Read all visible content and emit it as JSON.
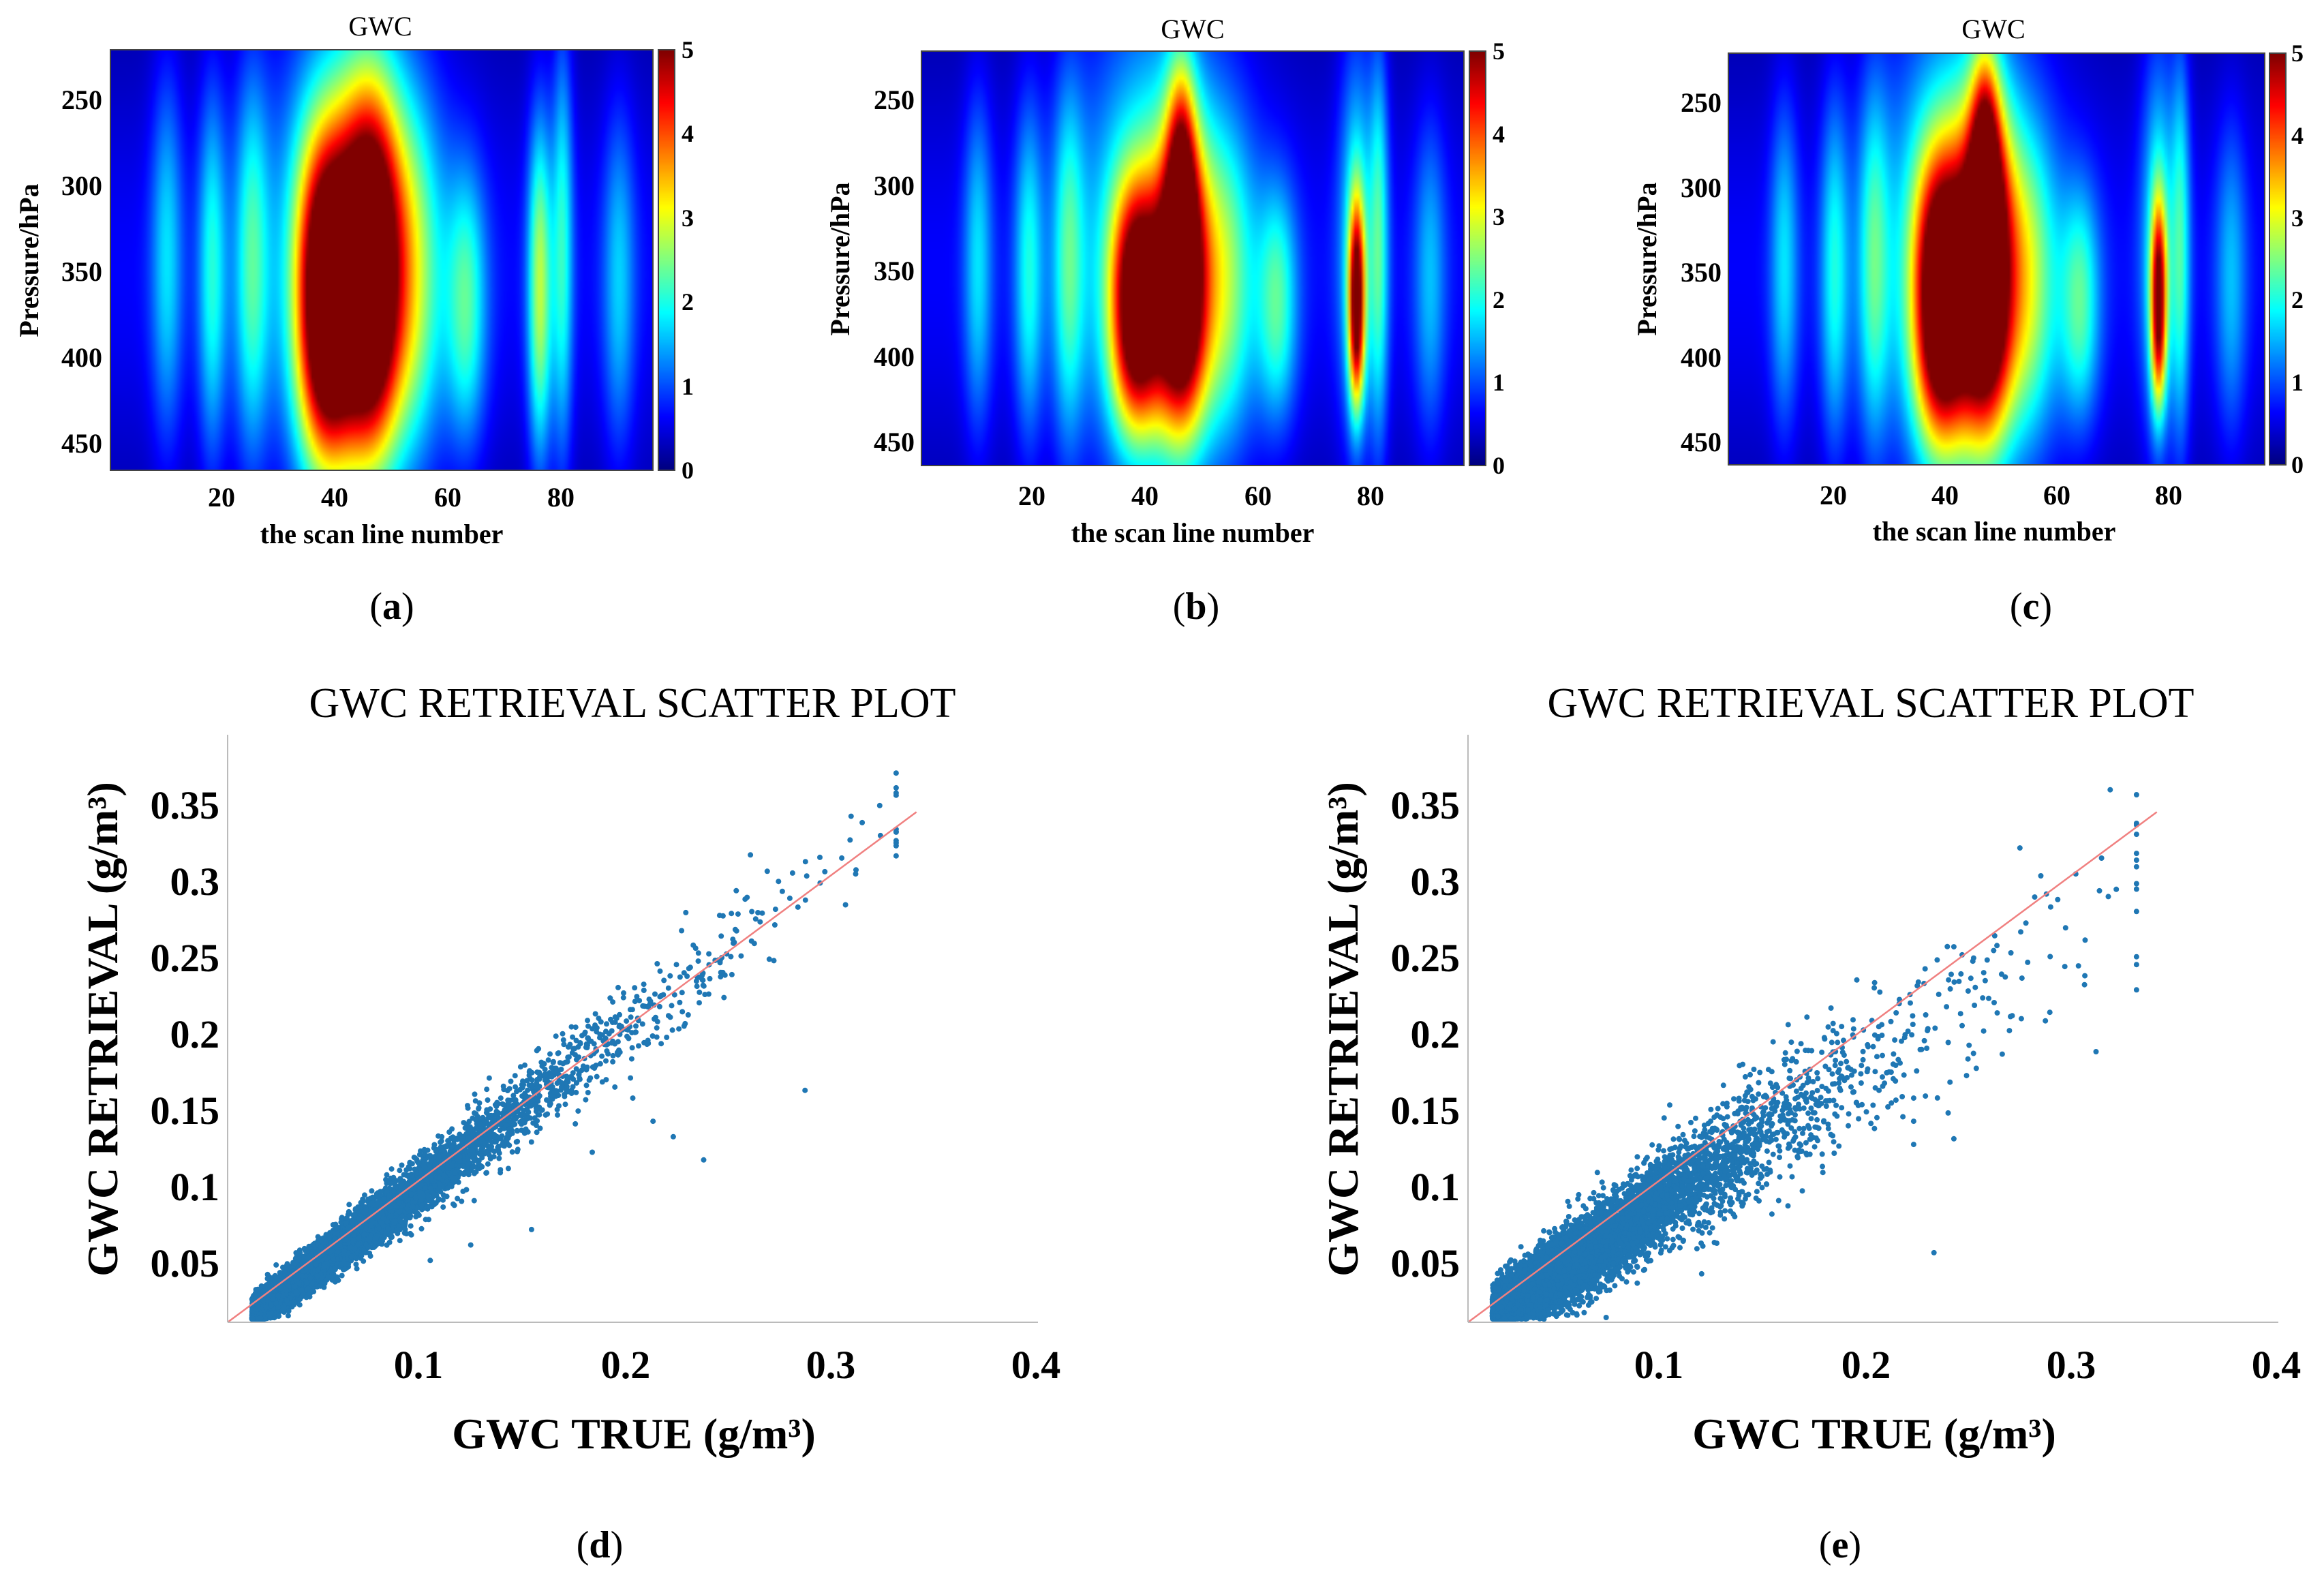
{
  "chart_data": [
    {
      "type": "heatmap",
      "panel": "(a)",
      "title": "GWC",
      "xlabel": "the scan line number",
      "ylabel": "Pressure/hPa",
      "xticks": [
        "20",
        "40",
        "60",
        "80"
      ],
      "yticks": [
        "250",
        "300",
        "350",
        "400",
        "450"
      ],
      "colorbar_ticks": [
        "0",
        "1",
        "2",
        "3",
        "4",
        "5"
      ],
      "xlim": [
        0,
        96
      ],
      "ylim": [
        220,
        465
      ],
      "clim": [
        0,
        5
      ],
      "colormap": "jet",
      "features": [
        {
          "x": 10,
          "p_center": 340,
          "p_half": 110,
          "width": 2.0,
          "peak": 1.3
        },
        {
          "x": 18,
          "p_center": 350,
          "p_half": 110,
          "width": 1.8,
          "peak": 1.6
        },
        {
          "x": 25,
          "p_center": 345,
          "p_half": 115,
          "width": 2.2,
          "peak": 1.7
        },
        {
          "x": 38,
          "p_center": 368,
          "p_half": 95,
          "width": 3.6,
          "peak": 5.6
        },
        {
          "x": 46,
          "p_center": 352,
          "p_half": 105,
          "width": 3.8,
          "peak": 5.8
        },
        {
          "x": 43,
          "p_center": 330,
          "p_half": 150,
          "width": 9.0,
          "peak": 2.0
        },
        {
          "x": 54,
          "p_center": 355,
          "p_half": 100,
          "width": 3.5,
          "peak": 1.5
        },
        {
          "x": 63,
          "p_center": 370,
          "p_half": 80,
          "width": 2.5,
          "peak": 1.8
        },
        {
          "x": 76,
          "p_center": 360,
          "p_half": 100,
          "width": 1.5,
          "peak": 2.5
        },
        {
          "x": 80,
          "p_center": 335,
          "p_half": 125,
          "width": 1.3,
          "peak": 1.7
        },
        {
          "x": 90,
          "p_center": 355,
          "p_half": 100,
          "width": 2.0,
          "peak": 1.2
        }
      ]
    },
    {
      "type": "heatmap",
      "panel": "(b)",
      "title": "GWC",
      "xlabel": "the scan line number",
      "ylabel": "Pressure/hPa",
      "xticks": [
        "20",
        "40",
        "60",
        "80"
      ],
      "yticks": [
        "250",
        "300",
        "350",
        "400",
        "450"
      ],
      "colorbar_ticks": [
        "0",
        "1",
        "2",
        "3",
        "4",
        "5"
      ],
      "xlim": [
        0,
        96
      ],
      "ylim": [
        220,
        465
      ],
      "clim": [
        0,
        5
      ],
      "colormap": "jet",
      "features": [
        {
          "x": 10,
          "p_center": 345,
          "p_half": 100,
          "width": 1.8,
          "peak": 1.3
        },
        {
          "x": 19,
          "p_center": 350,
          "p_half": 100,
          "width": 1.8,
          "peak": 1.5
        },
        {
          "x": 26,
          "p_center": 345,
          "p_half": 110,
          "width": 2.0,
          "peak": 1.6
        },
        {
          "x": 38,
          "p_center": 372,
          "p_half": 72,
          "width": 3.2,
          "peak": 5.0
        },
        {
          "x": 46,
          "p_center": 362,
          "p_half": 85,
          "width": 3.2,
          "peak": 5.4
        },
        {
          "x": 42,
          "p_center": 330,
          "p_half": 150,
          "width": 9.5,
          "peak": 1.9
        },
        {
          "x": 46,
          "p_center": 290,
          "p_half": 70,
          "width": 1.8,
          "peak": 2.6
        },
        {
          "x": 54,
          "p_center": 360,
          "p_half": 90,
          "width": 3.5,
          "peak": 1.6
        },
        {
          "x": 63,
          "p_center": 370,
          "p_half": 70,
          "width": 2.5,
          "peak": 1.8
        },
        {
          "x": 77,
          "p_center": 370,
          "p_half": 60,
          "width": 1.0,
          "peak": 4.6
        },
        {
          "x": 77,
          "p_center": 330,
          "p_half": 120,
          "width": 2.2,
          "peak": 1.6
        },
        {
          "x": 81,
          "p_center": 335,
          "p_half": 120,
          "width": 1.2,
          "peak": 1.7
        },
        {
          "x": 90,
          "p_center": 355,
          "p_half": 95,
          "width": 2.0,
          "peak": 1.1
        }
      ]
    },
    {
      "type": "heatmap",
      "panel": "(c)",
      "title": "GWC",
      "xlabel": "the scan line number",
      "ylabel": "Pressure/hPa",
      "xticks": [
        "20",
        "40",
        "60",
        "80"
      ],
      "yticks": [
        "250",
        "300",
        "350",
        "400",
        "450"
      ],
      "colorbar_ticks": [
        "0",
        "1",
        "2",
        "3",
        "4",
        "5"
      ],
      "xlim": [
        0,
        96
      ],
      "ylim": [
        220,
        465
      ],
      "clim": [
        0,
        5
      ],
      "colormap": "jet",
      "features": [
        {
          "x": 10,
          "p_center": 345,
          "p_half": 100,
          "width": 1.8,
          "peak": 1.3
        },
        {
          "x": 19,
          "p_center": 350,
          "p_half": 105,
          "width": 1.8,
          "peak": 1.5
        },
        {
          "x": 26,
          "p_center": 345,
          "p_half": 110,
          "width": 2.0,
          "peak": 1.6
        },
        {
          "x": 38,
          "p_center": 368,
          "p_half": 85,
          "width": 3.4,
          "peak": 5.6
        },
        {
          "x": 46,
          "p_center": 355,
          "p_half": 95,
          "width": 3.4,
          "peak": 5.7
        },
        {
          "x": 42,
          "p_center": 330,
          "p_half": 150,
          "width": 9.5,
          "peak": 2.0
        },
        {
          "x": 46,
          "p_center": 285,
          "p_half": 70,
          "width": 1.8,
          "peak": 2.8
        },
        {
          "x": 54,
          "p_center": 360,
          "p_half": 90,
          "width": 3.5,
          "peak": 1.7
        },
        {
          "x": 63,
          "p_center": 370,
          "p_half": 70,
          "width": 2.5,
          "peak": 1.8
        },
        {
          "x": 77,
          "p_center": 370,
          "p_half": 60,
          "width": 1.0,
          "peak": 4.2
        },
        {
          "x": 77,
          "p_center": 330,
          "p_half": 120,
          "width": 2.2,
          "peak": 1.6
        },
        {
          "x": 81,
          "p_center": 335,
          "p_half": 120,
          "width": 1.2,
          "peak": 1.6
        },
        {
          "x": 90,
          "p_center": 355,
          "p_half": 95,
          "width": 2.0,
          "peak": 1.1
        }
      ]
    },
    {
      "type": "scatter",
      "panel": "(d)",
      "title": "GWC RETRIEVAL SCATTER PLOT",
      "xlabel": "GWC TRUE (g/m³)",
      "ylabel": "GWC RETRIEVAL (g/m³)",
      "xlim": [
        0.0,
        0.4
      ],
      "ylim": [
        0.01,
        0.39
      ],
      "xticks": [
        "0.1",
        "0.2",
        "0.3",
        "0.4"
      ],
      "yticks": [
        "0.05",
        "0.1",
        "0.15",
        "0.2",
        "0.25",
        "0.3",
        "0.35"
      ],
      "reference_line": {
        "x": [
          0.0,
          0.34
        ],
        "y": [
          0.0,
          0.34
        ],
        "color": "#f08080"
      },
      "marker_color": "#1f77b4",
      "n_points": 9000,
      "slope": 1.0,
      "noise_sd_base": 0.004,
      "noise_sd_rel": 0.05,
      "outliers": [
        {
          "x": 0.285,
          "y": 0.16
        },
        {
          "x": 0.21,
          "y": 0.14
        },
        {
          "x": 0.22,
          "y": 0.13
        },
        {
          "x": 0.235,
          "y": 0.115
        },
        {
          "x": 0.18,
          "y": 0.12
        },
        {
          "x": 0.15,
          "y": 0.07
        },
        {
          "x": 0.12,
          "y": 0.06
        },
        {
          "x": 0.26,
          "y": 0.255
        },
        {
          "x": 0.33,
          "y": 0.32
        },
        {
          "x": 0.31,
          "y": 0.3
        },
        {
          "x": 0.305,
          "y": 0.28
        },
        {
          "x": 0.245,
          "y": 0.22
        },
        {
          "x": 0.2,
          "y": 0.155
        },
        {
          "x": 0.1,
          "y": 0.05
        }
      ],
      "x_max": 0.33
    },
    {
      "type": "scatter",
      "panel": "(e)",
      "title": "GWC RETRIEVAL SCATTER PLOT",
      "xlabel": "GWC TRUE (g/m³)",
      "ylabel": "GWC RETRIEVAL (g/m³)",
      "xlim": [
        0.0,
        0.4
      ],
      "ylim": [
        0.01,
        0.39
      ],
      "xticks": [
        "0.1",
        "0.2",
        "0.3",
        "0.4"
      ],
      "yticks": [
        "0.05",
        "0.1",
        "0.15",
        "0.2",
        "0.25",
        "0.3",
        "0.35"
      ],
      "reference_line": {
        "x": [
          0.0,
          0.34
        ],
        "y": [
          0.0,
          0.34
        ],
        "color": "#f08080"
      },
      "marker_color": "#1f77b4",
      "n_points": 9000,
      "slope": 0.88,
      "noise_sd_base": 0.007,
      "noise_sd_rel": 0.09,
      "outliers": [
        {
          "x": 0.33,
          "y": 0.225
        },
        {
          "x": 0.31,
          "y": 0.185
        },
        {
          "x": 0.285,
          "y": 0.205
        },
        {
          "x": 0.23,
          "y": 0.055
        },
        {
          "x": 0.22,
          "y": 0.155
        },
        {
          "x": 0.22,
          "y": 0.14
        },
        {
          "x": 0.22,
          "y": 0.125
        },
        {
          "x": 0.165,
          "y": 0.095
        },
        {
          "x": 0.15,
          "y": 0.08
        },
        {
          "x": 0.095,
          "y": 0.06
        },
        {
          "x": 0.06,
          "y": 0.075
        },
        {
          "x": 0.05,
          "y": 0.085
        },
        {
          "x": 0.32,
          "y": 0.29
        },
        {
          "x": 0.3,
          "y": 0.3
        },
        {
          "x": 0.26,
          "y": 0.26
        },
        {
          "x": 0.25,
          "y": 0.215
        },
        {
          "x": 0.24,
          "y": 0.23
        }
      ],
      "x_max": 0.33
    }
  ]
}
